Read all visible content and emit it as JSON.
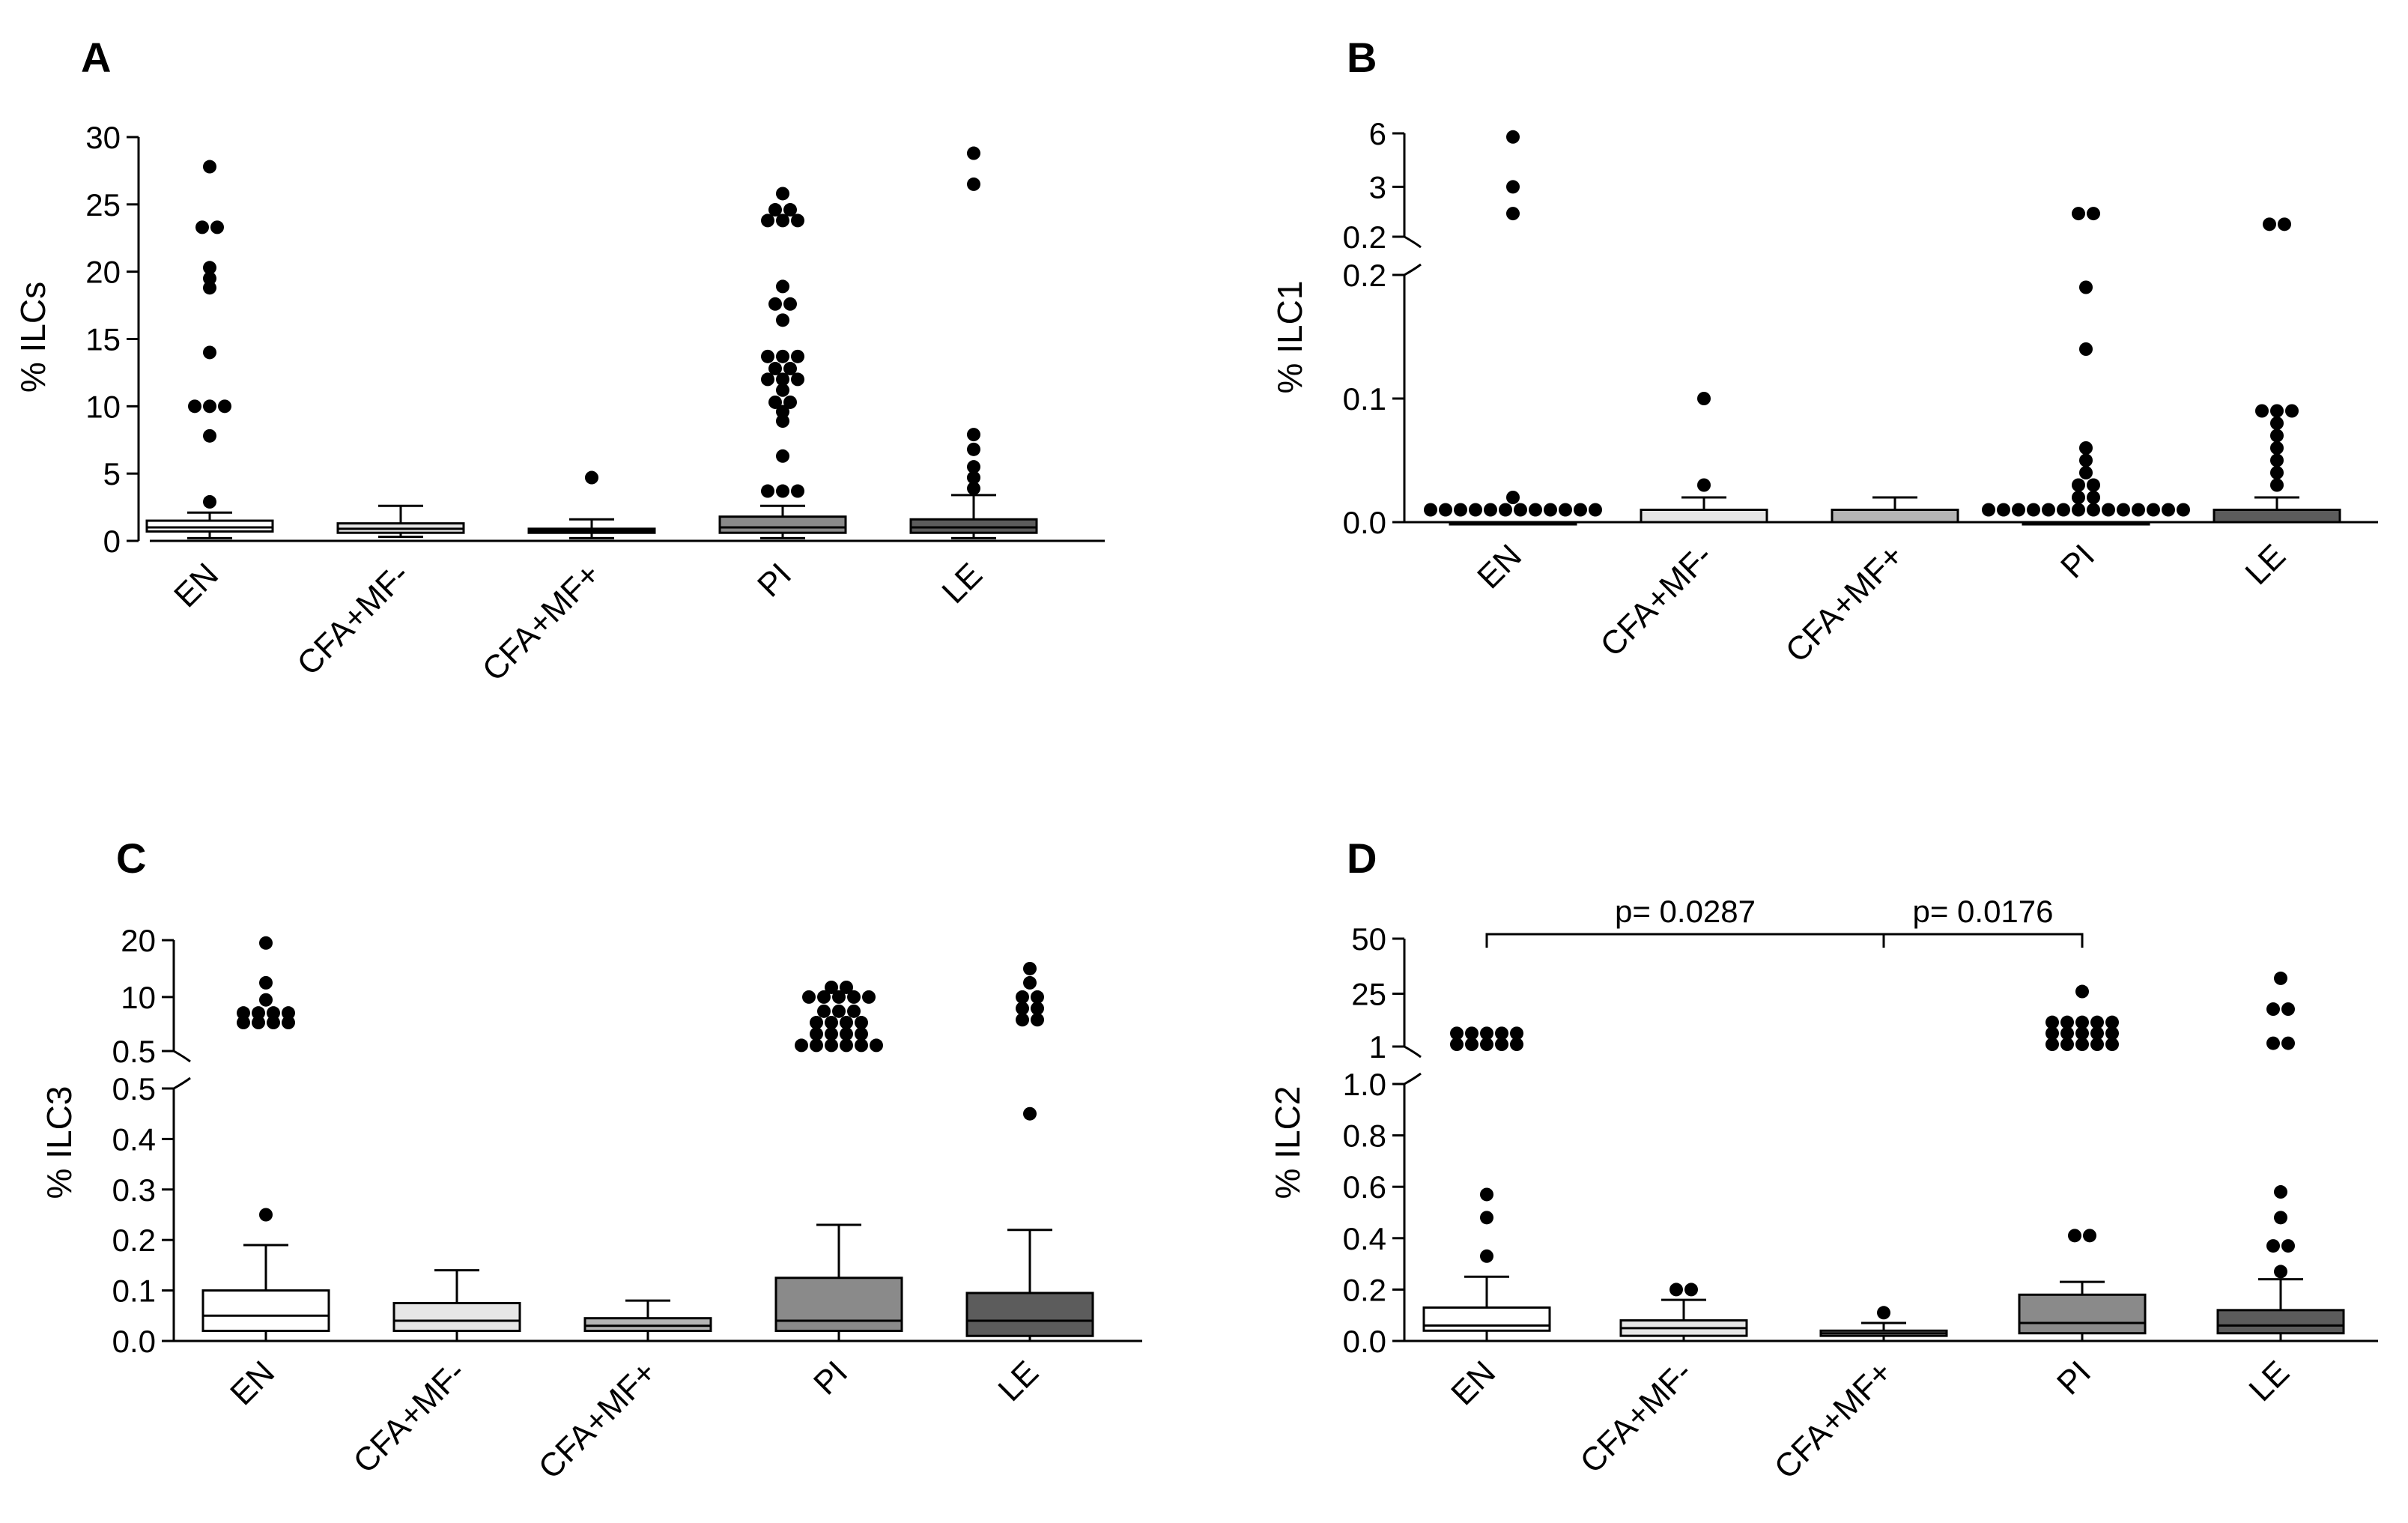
{
  "chart_data": [
    {
      "panel": "A",
      "type": "box",
      "ylabel": "% ILCs",
      "categories": [
        "EN",
        "CFA+MF-",
        "CFA+MF+",
        "PI",
        "LE"
      ],
      "colors": [
        "#ffffff",
        "#e6e6e6",
        "#b5b5b5",
        "#8a8a8a",
        "#5c5c5c"
      ],
      "y_ticks": [
        "0",
        "5",
        "10",
        "15",
        "20",
        "25",
        "30"
      ],
      "yaxis": {
        "segments": [
          {
            "min": 0,
            "max": 30,
            "ticks": [
              0,
              5,
              10,
              15,
              20,
              25,
              30
            ]
          }
        ]
      },
      "boxes": [
        {
          "q1": 0.7,
          "median": 1.0,
          "q3": 1.5,
          "whisker_low": 0.2,
          "whisker_high": 2.1
        },
        {
          "q1": 0.6,
          "median": 0.9,
          "q3": 1.3,
          "whisker_low": 0.3,
          "whisker_high": 2.6
        },
        {
          "q1": 0.6,
          "median": 0.75,
          "q3": 0.9,
          "whisker_low": 0.2,
          "whisker_high": 1.6
        },
        {
          "q1": 0.6,
          "median": 1.0,
          "q3": 1.8,
          "whisker_low": 0.2,
          "whisker_high": 2.6
        },
        {
          "q1": 0.6,
          "median": 1.0,
          "q3": 1.6,
          "whisker_low": 0.2,
          "whisker_high": 3.4
        }
      ],
      "outliers": [
        [
          2.9,
          7.8,
          10.0,
          10.2,
          10.4,
          14.0,
          18.8,
          19.5,
          20.3,
          23.3,
          23.7,
          27.8
        ],
        [],
        [
          4.7
        ],
        [
          3.7,
          3.8,
          4.0,
          6.3,
          8.9,
          9.6,
          10.3,
          10.8,
          11.2,
          12.0,
          12.4,
          12.6,
          12.8,
          13.3,
          13.7,
          14.2,
          14.3,
          16.4,
          17.6,
          17.8,
          18.9,
          23.8,
          24.2,
          24.4,
          24.6,
          25.2,
          25.8
        ],
        [
          3.9,
          4.7,
          5.5,
          6.8,
          7.9,
          26.5,
          28.8
        ]
      ],
      "annotations": []
    },
    {
      "panel": "B",
      "type": "box",
      "ylabel": "% ILC1",
      "categories": [
        "EN",
        "CFA+MF-",
        "CFA+MF+",
        "PI",
        "LE"
      ],
      "colors": [
        "#ffffff",
        "#e6e6e6",
        "#b5b5b5",
        "#8a8a8a",
        "#5c5c5c"
      ],
      "y_ticks": [
        "0.0",
        "0.1",
        "0.2",
        "0.2",
        "3",
        "6"
      ],
      "yaxis": {
        "segments": [
          {
            "min": 0,
            "max": 0.2,
            "ticks": [
              0,
              0.1,
              0.2
            ]
          },
          {
            "min": 0.2,
            "max": 6,
            "ticks": [
              0.2,
              3,
              6
            ]
          }
        ]
      },
      "boxes": [
        {
          "q1": 0.0,
          "median": 0.0,
          "q3": 0.0,
          "whisker_low": 0.0,
          "whisker_high": 0.0
        },
        {
          "q1": 0.0,
          "median": 0.0,
          "q3": 0.01,
          "whisker_low": 0.0,
          "whisker_high": 0.02
        },
        {
          "q1": 0.0,
          "median": 0.0,
          "q3": 0.01,
          "whisker_low": 0.0,
          "whisker_high": 0.02
        },
        {
          "q1": 0.0,
          "median": 0.0,
          "q3": 0.0,
          "whisker_low": 0.0,
          "whisker_high": 0.0
        },
        {
          "q1": 0.0,
          "median": 0.0,
          "q3": 0.01,
          "whisker_low": 0.0,
          "whisker_high": 0.02
        }
      ],
      "outliers": [
        [
          0.01,
          0.01,
          0.01,
          0.01,
          0.01,
          0.01,
          0.01,
          0.01,
          0.01,
          0.01,
          0.01,
          0.01,
          0.02,
          1.5,
          3.0,
          5.8
        ],
        [
          0.03,
          0.1
        ],
        [],
        [
          0.01,
          0.01,
          0.01,
          0.01,
          0.01,
          0.01,
          0.01,
          0.01,
          0.01,
          0.01,
          0.01,
          0.01,
          0.01,
          0.01,
          0.02,
          0.02,
          0.03,
          0.03,
          0.04,
          0.05,
          0.06,
          0.14,
          0.19,
          1.5,
          2.0
        ],
        [
          0.03,
          0.04,
          0.05,
          0.06,
          0.07,
          0.08,
          0.09,
          0.09,
          0.09,
          0.9,
          1.3
        ]
      ],
      "annotations": []
    },
    {
      "panel": "C",
      "type": "box",
      "ylabel": "% ILC3",
      "categories": [
        "EN",
        "CFA+MF-",
        "CFA+MF+",
        "PI",
        "LE"
      ],
      "colors": [
        "#ffffff",
        "#e6e6e6",
        "#b5b5b5",
        "#8a8a8a",
        "#5c5c5c"
      ],
      "y_ticks": [
        "0.0",
        "0.1",
        "0.2",
        "0.3",
        "0.4",
        "0.5",
        "0.5",
        "10",
        "20"
      ],
      "yaxis": {
        "segments": [
          {
            "min": 0,
            "max": 0.5,
            "ticks": [
              0,
              0.1,
              0.2,
              0.3,
              0.4,
              0.5
            ]
          },
          {
            "min": 0.5,
            "max": 20,
            "ticks": [
              0.5,
              10,
              20
            ]
          }
        ]
      },
      "boxes": [
        {
          "q1": 0.02,
          "median": 0.05,
          "q3": 0.1,
          "whisker_low": 0.0,
          "whisker_high": 0.19
        },
        {
          "q1": 0.02,
          "median": 0.04,
          "q3": 0.075,
          "whisker_low": 0.0,
          "whisker_high": 0.14
        },
        {
          "q1": 0.02,
          "median": 0.03,
          "q3": 0.045,
          "whisker_low": 0.0,
          "whisker_high": 0.08
        },
        {
          "q1": 0.02,
          "median": 0.04,
          "q3": 0.125,
          "whisker_low": 0.0,
          "whisker_high": 0.23
        },
        {
          "q1": 0.01,
          "median": 0.04,
          "q3": 0.095,
          "whisker_low": 0.0,
          "whisker_high": 0.22
        }
      ],
      "outliers": [
        [
          0.25,
          5.5,
          6.0,
          6.5,
          7.0,
          7.2,
          7.5,
          7.8,
          8.5,
          9.5,
          12.5,
          19.5
        ],
        [],
        [],
        [
          1.5,
          1.6,
          1.8,
          2.0,
          2.5,
          3.0,
          3.5,
          4.0,
          4.5,
          5.0,
          5.5,
          6.0,
          6.5,
          7.0,
          7.5,
          8.0,
          9.0,
          10.0,
          10.5,
          11.0,
          11.2,
          11.5,
          11.7,
          12.0
        ],
        [
          0.45,
          6.0,
          7.0,
          8.0,
          9.0,
          10.0,
          11.0,
          12.5,
          15.0
        ]
      ],
      "annotations": []
    },
    {
      "panel": "D",
      "type": "box",
      "ylabel": "% ILC2",
      "categories": [
        "EN",
        "CFA+MF-",
        "CFA+MF+",
        "PI",
        "LE"
      ],
      "colors": [
        "#ffffff",
        "#e6e6e6",
        "#b5b5b5",
        "#8a8a8a",
        "#5c5c5c"
      ],
      "y_ticks": [
        "0.0",
        "0.2",
        "0.4",
        "0.6",
        "0.8",
        "1.0",
        "1",
        "25",
        "50"
      ],
      "yaxis": {
        "segments": [
          {
            "min": 0,
            "max": 1.0,
            "ticks": [
              0,
              0.2,
              0.4,
              0.6,
              0.8,
              1.0
            ]
          },
          {
            "min": 1,
            "max": 50,
            "ticks": [
              1,
              25,
              50
            ]
          }
        ]
      },
      "boxes": [
        {
          "q1": 0.04,
          "median": 0.06,
          "q3": 0.13,
          "whisker_low": 0.0,
          "whisker_high": 0.25
        },
        {
          "q1": 0.02,
          "median": 0.05,
          "q3": 0.08,
          "whisker_low": 0.0,
          "whisker_high": 0.16
        },
        {
          "q1": 0.02,
          "median": 0.03,
          "q3": 0.04,
          "whisker_low": 0.0,
          "whisker_high": 0.07
        },
        {
          "q1": 0.03,
          "median": 0.07,
          "q3": 0.18,
          "whisker_low": 0.0,
          "whisker_high": 0.23
        },
        {
          "q1": 0.03,
          "median": 0.06,
          "q3": 0.12,
          "whisker_low": 0.0,
          "whisker_high": 0.24
        }
      ],
      "outliers": [
        [
          0.33,
          0.48,
          0.57,
          2.0,
          3.0,
          4.0,
          5.0,
          6.0,
          7.0,
          8.0,
          9.0,
          10.0,
          11.0
        ],
        [
          0.2,
          0.2
        ],
        [
          0.11
        ],
        [
          0.41,
          0.43,
          2.0,
          3.0,
          4.0,
          5.0,
          6.0,
          7.0,
          8.0,
          9.0,
          10.0,
          11.0,
          12.0,
          13.0,
          14.0,
          15.0,
          16.0,
          26.0
        ],
        [
          0.27,
          0.37,
          0.37,
          0.48,
          0.58,
          2.5,
          3.0,
          18.0,
          19.0,
          32.0
        ]
      ],
      "annotations": [
        {
          "text": "p= 0.0287",
          "from": 0,
          "to": 2
        },
        {
          "text": "p= 0.0176",
          "from": 2,
          "to": 3
        }
      ]
    }
  ]
}
